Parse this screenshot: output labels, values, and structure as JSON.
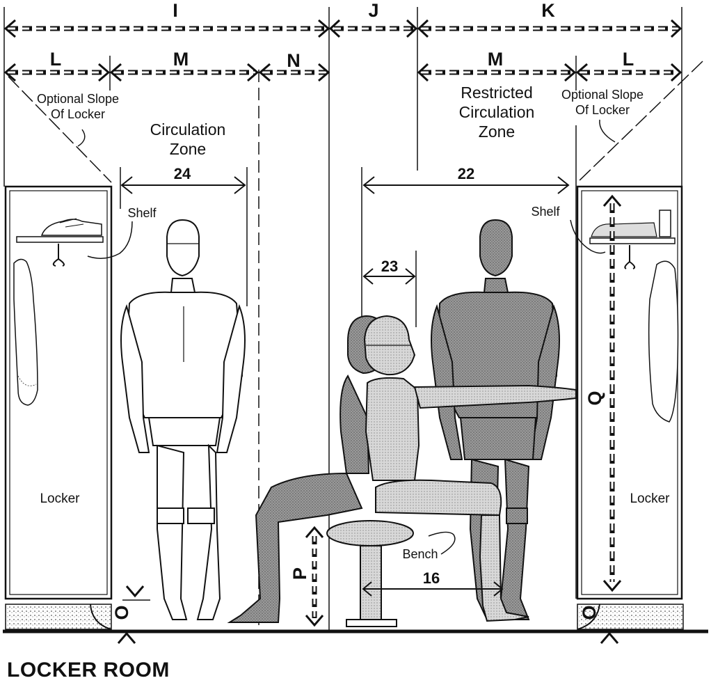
{
  "title": "LOCKER ROOM",
  "dimensions_top": {
    "I": "I",
    "J": "J",
    "K": "K"
  },
  "dimensions_second": {
    "L_left": "L",
    "M_left": "M",
    "N": "N",
    "M_right": "M",
    "L_right": "L"
  },
  "labels": {
    "optional_slope_l1": "Optional Slope",
    "optional_slope_l2": "Of Locker",
    "optional_slope_r1": "Optional Slope",
    "optional_slope_r2": "Of Locker",
    "circulation_1": "Circulation",
    "circulation_2": "Zone",
    "restricted_1": "Restricted",
    "restricted_2": "Circulation",
    "restricted_3": "Zone",
    "shelf_left": "Shelf",
    "shelf_right": "Shelf",
    "locker_left": "Locker",
    "locker_right": "Locker",
    "bench": "Bench",
    "O_left": "O",
    "O_right": "O",
    "P": "P",
    "Q": "Q"
  },
  "measurements": {
    "m24": "24",
    "m22": "22",
    "m23": "23",
    "m16": "16"
  }
}
